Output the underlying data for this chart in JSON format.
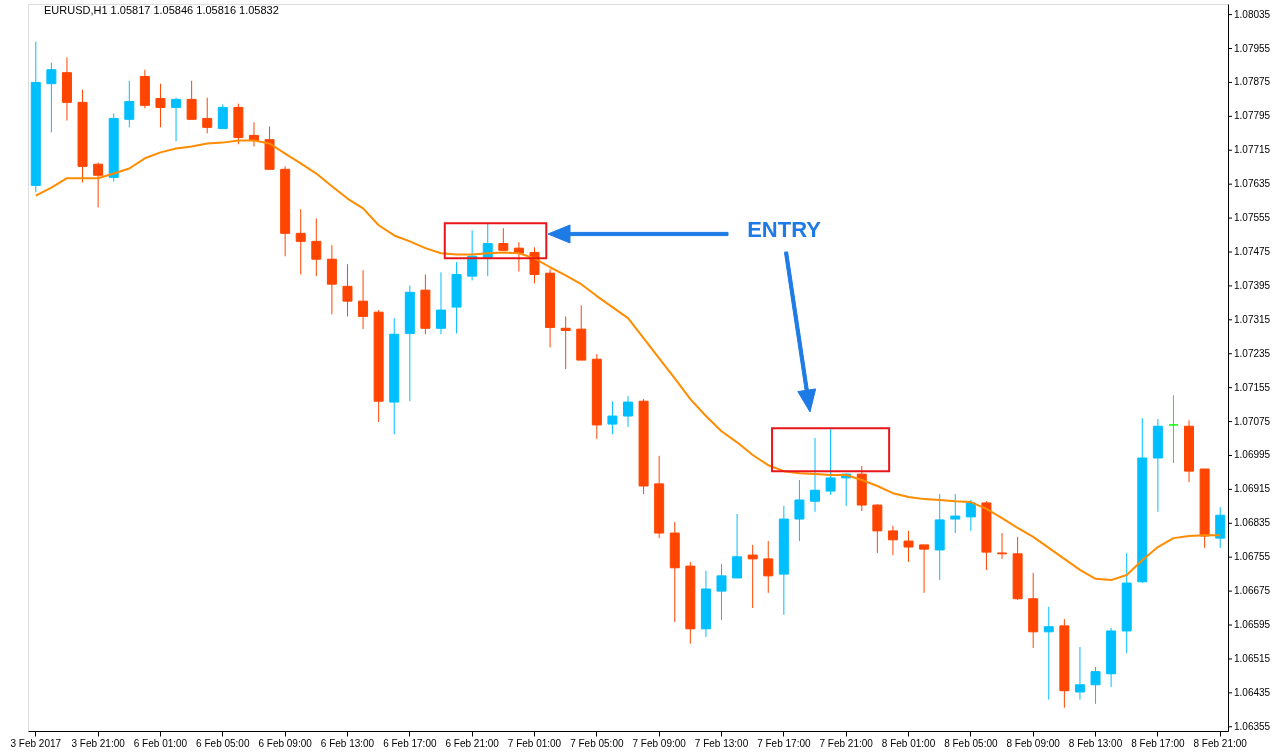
{
  "chart_data": {
    "type": "candlestick",
    "title": "EURUSD,H1  1.05817 1.05846 1.05816 1.05832",
    "annotations": [
      "ENTRY"
    ],
    "categories": [
      "3 Feb 2017",
      null,
      null,
      null,
      "3 Feb 21:00",
      null,
      null,
      null,
      "6 Feb 01:00",
      null,
      null,
      null,
      "6 Feb 05:00",
      null,
      null,
      null,
      "6 Feb 09:00",
      null,
      null,
      null,
      "6 Feb 13:00",
      null,
      null,
      null,
      "6 Feb 17:00",
      null,
      null,
      null,
      "6 Feb 21:00",
      null,
      null,
      null,
      "7 Feb 01:00",
      null,
      null,
      null,
      "7 Feb 05:00",
      null,
      null,
      null,
      "7 Feb 09:00",
      null,
      null,
      null,
      "7 Feb 13:00",
      null,
      null,
      null,
      "7 Feb 17:00",
      null,
      null,
      null,
      "7 Feb 21:00",
      null,
      null,
      null,
      "8 Feb 01:00",
      null,
      null,
      null,
      "8 Feb 05:00",
      null,
      null,
      null,
      "8 Feb 09:00",
      null,
      null,
      null,
      "8 Feb 13:00",
      null,
      null,
      null,
      "8 Feb 17:00",
      null,
      null,
      null,
      "8 Feb 21:00"
    ],
    "ylim": [
      1.06345,
      1.0806
    ],
    "yticks": [
      1.06355,
      1.06435,
      1.06515,
      1.06595,
      1.06675,
      1.06755,
      1.06835,
      1.06915,
      1.06995,
      1.07075,
      1.07155,
      1.07235,
      1.07315,
      1.07395,
      1.07475,
      1.07555,
      1.07635,
      1.07715,
      1.07795,
      1.07875,
      1.07955,
      1.08035
    ],
    "series": [
      {
        "type": "candlestick",
        "ohlc": [
          [
            1.07632,
            1.07971,
            1.07616,
            1.07875
          ],
          [
            1.07872,
            1.07922,
            1.07757,
            1.07905
          ],
          [
            1.07898,
            1.07934,
            1.07785,
            1.07828
          ],
          [
            1.07828,
            1.07858,
            1.07639,
            1.07677
          ],
          [
            1.07682,
            1.07686,
            1.0758,
            1.07656
          ],
          [
            1.07651,
            1.07802,
            1.07641,
            1.0779
          ],
          [
            1.07788,
            1.07879,
            1.07769,
            1.0783
          ],
          [
            1.07889,
            1.07905,
            1.07814,
            1.07821
          ],
          [
            1.07837,
            1.07872,
            1.07769,
            1.07816
          ],
          [
            1.07816,
            1.07839,
            1.07736,
            1.07835
          ],
          [
            1.07835,
            1.07879,
            1.07788,
            1.07788
          ],
          [
            1.0779,
            1.07839,
            1.07755,
            1.07769
          ],
          [
            1.07766,
            1.07823,
            1.07766,
            1.07816
          ],
          [
            1.07816,
            1.07825,
            1.07729,
            1.07745
          ],
          [
            1.0775,
            1.07781,
            1.07724,
            1.07738
          ],
          [
            1.0774,
            1.07771,
            1.0767,
            1.0767
          ],
          [
            1.0767,
            1.07677,
            1.07465,
            1.07519
          ],
          [
            1.07519,
            1.07576,
            1.07422,
            1.075
          ],
          [
            1.075,
            1.07554,
            1.07418,
            1.07458
          ],
          [
            1.07458,
            1.07491,
            1.07328,
            1.07399
          ],
          [
            1.07394,
            1.07446,
            1.07323,
            1.07359
          ],
          [
            1.07359,
            1.07432,
            1.07293,
            1.07323
          ],
          [
            1.07333,
            1.07338,
            1.07074,
            1.07123
          ],
          [
            1.07121,
            1.07319,
            1.07045,
            1.07281
          ],
          [
            1.07283,
            1.07396,
            1.07123,
            1.0738
          ],
          [
            1.07385,
            1.07422,
            1.07281,
            1.07295
          ],
          [
            1.07295,
            1.07427,
            1.07281,
            1.07338
          ],
          [
            1.07345,
            1.07451,
            1.07283,
            1.07422
          ],
          [
            1.07418,
            1.07526,
            1.07408,
            1.07465
          ],
          [
            1.07462,
            1.07543,
            1.07418,
            1.07495
          ],
          [
            1.07495,
            1.07531,
            1.07479,
            1.07479
          ],
          [
            1.07484,
            1.07498,
            1.07429,
            1.07472
          ],
          [
            1.07474,
            1.07486,
            1.07401,
            1.07422
          ],
          [
            1.07425,
            1.07434,
            1.0725,
            1.07297
          ],
          [
            1.07295,
            1.07323,
            1.07199,
            1.0729
          ],
          [
            1.07293,
            1.07349,
            1.0722,
            1.0722
          ],
          [
            1.07222,
            1.07234,
            1.07034,
            1.07067
          ],
          [
            1.07069,
            1.07123,
            1.07045,
            1.07088
          ],
          [
            1.07088,
            1.07135,
            1.07062,
            1.07121
          ],
          [
            1.07123,
            1.07128,
            1.06904,
            1.06923
          ],
          [
            1.06928,
            1.06994,
            1.068,
            1.06812
          ],
          [
            1.06812,
            1.06838,
            1.06602,
            1.0673
          ],
          [
            1.06734,
            1.06744,
            1.06551,
            1.06586
          ],
          [
            1.06586,
            1.06723,
            1.06567,
            1.0668
          ],
          [
            1.06675,
            1.06739,
            1.06607,
            1.06711
          ],
          [
            1.06706,
            1.06857,
            1.06706,
            1.06756
          ],
          [
            1.0676,
            1.06784,
            1.06635,
            1.06751
          ],
          [
            1.06751,
            1.06793,
            1.06671,
            1.06711
          ],
          [
            1.06715,
            1.06876,
            1.06619,
            1.06845
          ],
          [
            1.06845,
            1.06937,
            1.06793,
            1.0689
          ],
          [
            1.06887,
            1.07036,
            1.06862,
            1.06913
          ],
          [
            1.06911,
            1.07059,
            1.06902,
            1.06942
          ],
          [
            1.06942,
            1.06953,
            1.06876,
            1.06951
          ],
          [
            1.06951,
            1.0697,
            1.06864,
            1.06878
          ],
          [
            1.06878,
            1.0688,
            1.06765,
            1.06817
          ],
          [
            1.06817,
            1.06829,
            1.0676,
            1.06796
          ],
          [
            1.06793,
            1.06817,
            1.06744,
            1.06779
          ],
          [
            1.06784,
            1.06784,
            1.06671,
            1.06774
          ],
          [
            1.06772,
            1.06904,
            1.06701,
            1.06843
          ],
          [
            1.06845,
            1.06904,
            1.06812,
            1.06852
          ],
          [
            1.0685,
            1.0689,
            1.06817,
            1.06883
          ],
          [
            1.06883,
            1.06887,
            1.06725,
            1.06767
          ],
          [
            1.06765,
            1.06812,
            1.06751,
            1.06763
          ],
          [
            1.06763,
            1.06803,
            1.06654,
            1.06657
          ],
          [
            1.06657,
            1.06718,
            1.06541,
            1.06579
          ],
          [
            1.06579,
            1.06638,
            1.06419,
            1.06591
          ],
          [
            1.06593,
            1.06609,
            1.064,
            1.0644
          ],
          [
            1.06437,
            1.06543,
            1.06419,
            1.06454
          ],
          [
            1.06454,
            1.06496,
            1.06409,
            1.06485
          ],
          [
            1.0648,
            1.06588,
            1.06449,
            1.06581
          ],
          [
            1.06581,
            1.06765,
            1.06529,
            1.06694
          ],
          [
            1.06697,
            1.07083,
            1.06694,
            1.06989
          ],
          [
            1.06989,
            1.07081,
            1.06862,
            1.07064
          ],
          [
            1.07067,
            1.07137,
            1.06977,
            1.07067
          ],
          [
            1.07064,
            1.07078,
            1.06932,
            1.06958
          ],
          [
            1.06963,
            1.06963,
            1.06777,
            1.06805
          ],
          [
            1.068,
            1.06873,
            1.06777,
            1.06854
          ]
        ],
        "colors": [
          "#00bfff",
          "#00bfff",
          "#ff4500",
          "#ff4500",
          "#ff4500",
          "#00bfff",
          "#00bfff",
          "#ff4500",
          "#ff4500",
          "#00bfff",
          "#ff4500",
          "#ff4500",
          "#00bfff",
          "#ff4500",
          "#ff4500",
          "#ff4500",
          "#ff4500",
          "#ff4500",
          "#ff4500",
          "#ff4500",
          "#ff4500",
          "#ff4500",
          "#ff4500",
          "#00bfff",
          "#00bfff",
          "#ff4500",
          "#00bfff",
          "#00bfff",
          "#00bfff",
          "#00bfff",
          "#ff4500",
          "#ff4500",
          "#ff4500",
          "#ff4500",
          "#ff4500",
          "#ff4500",
          "#ff4500",
          "#00bfff",
          "#00bfff",
          "#ff4500",
          "#ff4500",
          "#ff4500",
          "#ff4500",
          "#00bfff",
          "#00bfff",
          "#00bfff",
          "#ff4500",
          "#ff4500",
          "#00bfff",
          "#00bfff",
          "#00bfff",
          "#00bfff",
          "#00bfff",
          "#ff4500",
          "#ff4500",
          "#ff4500",
          "#ff4500",
          "#ff4500",
          "#00bfff",
          "#00bfff",
          "#00bfff",
          "#ff4500",
          "#ff4500",
          "#ff4500",
          "#ff4500",
          "#00bfff",
          "#ff4500",
          "#00bfff",
          "#00bfff",
          "#00bfff",
          "#00bfff",
          "#00bfff",
          "#00bfff",
          "#00ff00",
          "#ff4500",
          "#ff4500",
          "#00bfff"
        ]
      },
      {
        "type": "line",
        "color": "#ff8c00",
        "values": [
          1.07608,
          1.07627,
          1.07649,
          1.07649,
          1.07649,
          1.0766,
          1.07672,
          1.07696,
          1.0771,
          1.07719,
          1.07724,
          1.07731,
          1.07733,
          1.07738,
          1.07738,
          1.07731,
          1.07707,
          1.07684,
          1.0766,
          1.0763,
          1.07601,
          1.07578,
          1.07538,
          1.07514,
          1.075,
          1.07484,
          1.07472,
          1.07469,
          1.07469,
          1.07472,
          1.07474,
          1.07472,
          1.0746,
          1.07439,
          1.0742,
          1.07399,
          1.07371,
          1.07345,
          1.07319,
          1.07272,
          1.07224,
          1.07177,
          1.07128,
          1.07088,
          1.07052,
          1.07026,
          1.06996,
          1.06972,
          1.06958,
          1.06953,
          1.06951,
          1.06949,
          1.06949,
          1.06937,
          1.06923,
          1.06906,
          1.06897,
          1.06892,
          1.0689,
          1.06887,
          1.06885,
          1.06869,
          1.06847,
          1.06824,
          1.06803,
          1.06777,
          1.06751,
          1.06725,
          1.06704,
          1.06701,
          1.06713,
          1.06748,
          1.06779,
          1.068,
          1.06805,
          1.06807,
          1.06807
        ]
      }
    ]
  }
}
